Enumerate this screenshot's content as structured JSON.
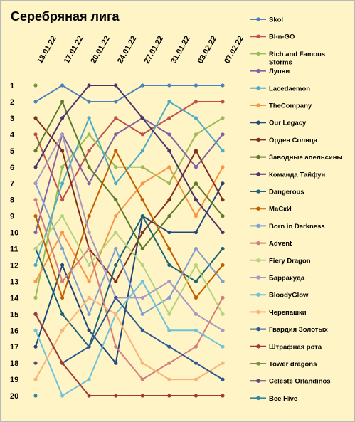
{
  "chart_data": {
    "type": "line",
    "title": "Серебряная лига",
    "x": [
      "13.01.22",
      "17.01.22",
      "20.01.22",
      "24.01.22",
      "27.01.22",
      "31.01.22",
      "03.02.22",
      "07.02.22"
    ],
    "y_ticks": [
      "1",
      "2",
      "3",
      "4",
      "5",
      "6",
      "7",
      "8",
      "9",
      "10",
      "11",
      "12",
      "13",
      "14",
      "15",
      "16",
      "17",
      "18",
      "19",
      "20"
    ],
    "ylim": [
      1,
      20
    ],
    "y_inverted": true,
    "grid": false,
    "legend_position": "right",
    "series": [
      {
        "name": "Skol",
        "color": "#4f81bd",
        "values": [
          2,
          1,
          2,
          2,
          1,
          1,
          1,
          1
        ]
      },
      {
        "name": "BI-n-GO",
        "color": "#c0504d",
        "values": [
          4,
          8,
          5,
          3,
          4,
          3,
          2,
          2
        ]
      },
      {
        "name": "Rich and Famous Storms",
        "color": "#9bbb59",
        "values": [
          14,
          6,
          4,
          6,
          6,
          7,
          4,
          3
        ]
      },
      {
        "name": "Лупни",
        "color": "#8064a2",
        "values": [
          10,
          4,
          7,
          4,
          3,
          4,
          6,
          4
        ]
      },
      {
        "name": "Lacedaemon",
        "color": "#4bacc6",
        "values": [
          12,
          7,
          3,
          7,
          5,
          2,
          3,
          5
        ]
      },
      {
        "name": "TheCompany",
        "color": "#f79646",
        "values": [
          13,
          10,
          13,
          9,
          7,
          6,
          9,
          6
        ]
      },
      {
        "name": "Our Legacy",
        "color": "#1f497d",
        "values": [
          17,
          12,
          16,
          18,
          9,
          10,
          10,
          7
        ]
      },
      {
        "name": "Орден Солнца",
        "color": "#7f2f20",
        "values": [
          3,
          5,
          11,
          13,
          10,
          8,
          5,
          8
        ]
      },
      {
        "name": "Заводные апельсины",
        "color": "#5e7a2b",
        "values": [
          5,
          2,
          6,
          8,
          11,
          9,
          7,
          9
        ]
      },
      {
        "name": "Команда Тайфун",
        "color": "#4a3566",
        "values": [
          6,
          3,
          1,
          1,
          3,
          5,
          8,
          10
        ]
      },
      {
        "name": "Dangerous",
        "color": "#1d6474",
        "values": [
          11,
          15,
          17,
          12,
          9,
          12,
          13,
          11
        ]
      },
      {
        "name": "МаСкИ",
        "color": "#c25e00",
        "values": [
          9,
          14,
          9,
          5,
          8,
          11,
          14,
          12
        ]
      },
      {
        "name": "Born in Darkness",
        "color": "#7fa0cf",
        "values": [
          7,
          11,
          15,
          11,
          15,
          14,
          11,
          13
        ]
      },
      {
        "name": "Advent",
        "color": "#d47e7a",
        "values": [
          8,
          13,
          11,
          17,
          19,
          18,
          17,
          14
        ]
      },
      {
        "name": "Fiery Dragon",
        "color": "#b6d37d",
        "values": [
          11,
          9,
          12,
          10,
          12,
          15,
          12,
          15
        ]
      },
      {
        "name": "Барракуда",
        "color": "#a898c4",
        "values": [
          7,
          4,
          10,
          14,
          14,
          13,
          15,
          16
        ]
      },
      {
        "name": "BloodyGlow",
        "color": "#6fc2d8",
        "values": [
          16,
          20,
          19,
          15,
          13,
          16,
          16,
          17
        ]
      },
      {
        "name": "Черепашки",
        "color": "#f8b47c",
        "values": [
          19,
          16,
          14,
          15,
          18,
          19,
          19,
          18
        ]
      },
      {
        "name": "Гвардия Золотых",
        "color": "#2d5a95",
        "values": [
          15,
          18,
          17,
          14,
          16,
          17,
          18,
          19
        ]
      },
      {
        "name": "Штрафная рота",
        "color": "#9e3a38",
        "values": [
          15,
          18,
          20,
          20,
          20,
          20,
          20,
          20
        ]
      },
      {
        "name": "Tower dragons",
        "color": "#76923c",
        "values": [
          1,
          null,
          null,
          null,
          null,
          null,
          null,
          null
        ]
      },
      {
        "name": "Celeste Orlandinos",
        "color": "#5f497a",
        "values": [
          18,
          null,
          null,
          null,
          null,
          null,
          null,
          null
        ]
      },
      {
        "name": "Bee Hive",
        "color": "#31859c",
        "values": [
          20,
          null,
          null,
          null,
          null,
          null,
          null,
          null
        ]
      }
    ]
  }
}
